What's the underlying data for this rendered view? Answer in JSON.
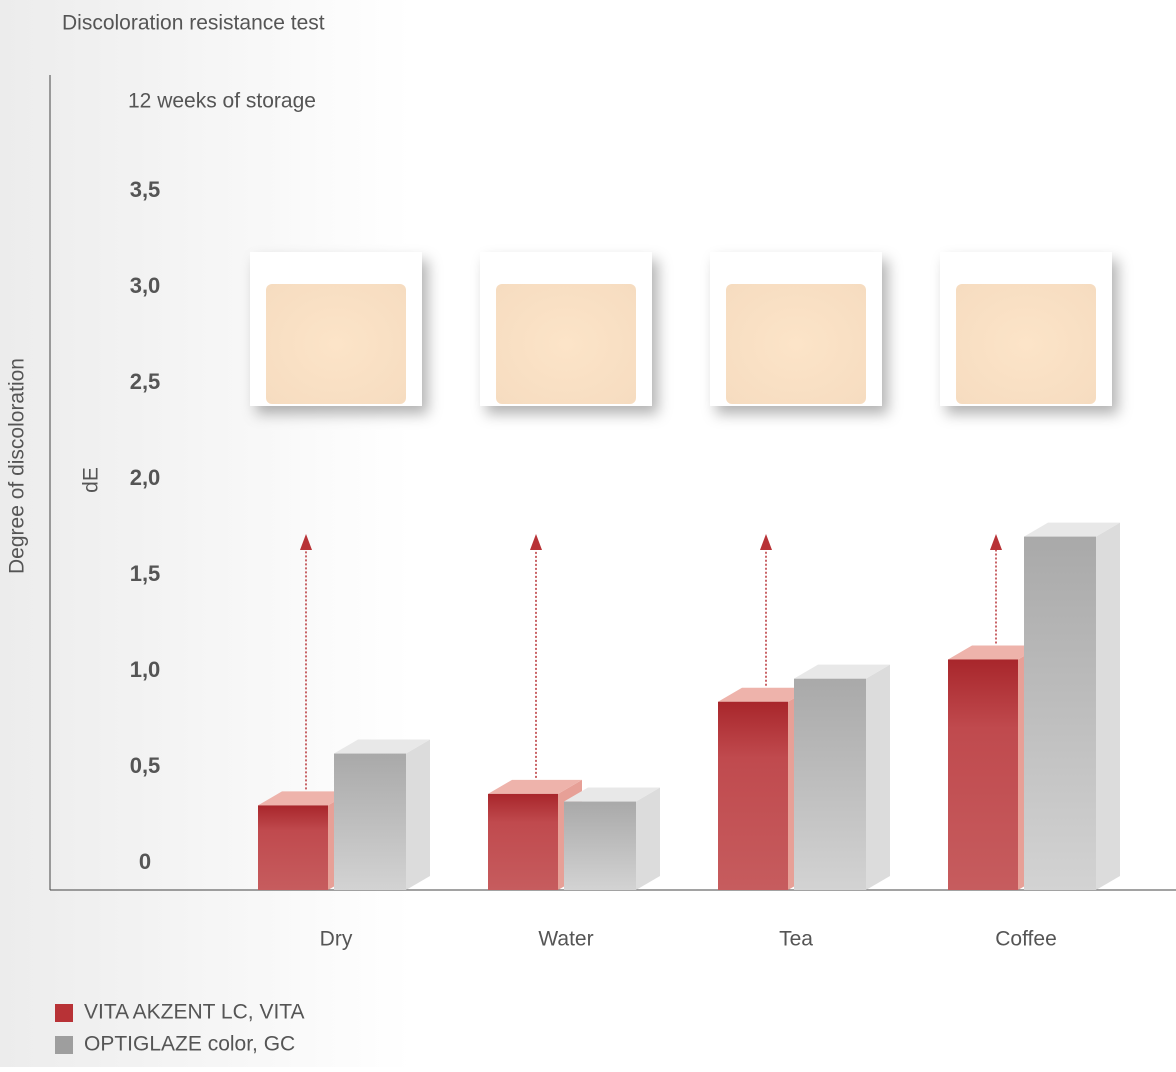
{
  "chart_data": {
    "type": "bar3d",
    "title": "Discoloration resistance test",
    "subtitle": "12 weeks of storage",
    "y_label": "Degree of discoloration",
    "y_unit": "dE",
    "categories": [
      "Dry",
      "Water",
      "Tea",
      "Coffee"
    ],
    "series": [
      {
        "name": "VITA AKZENT LC, VITA",
        "color": "#b83236",
        "values": [
          0.3,
          0.36,
          0.84,
          1.06
        ]
      },
      {
        "name": "OPTIGLAZE color, GC",
        "color": "#9e9e9e",
        "values": [
          0.57,
          0.32,
          0.96,
          1.7
        ]
      }
    ],
    "ylim": [
      0,
      3.5
    ],
    "yticks": [
      0,
      {
        "value": 0.5,
        "label": "0,5"
      },
      {
        "value": 1,
        "label": "1,0"
      },
      {
        "value": 1.5,
        "label": "1,5"
      },
      {
        "value": 2,
        "label": "2,0"
      },
      {
        "value": 2.5,
        "label": "2,5"
      },
      {
        "value": 3,
        "label": "3,0"
      },
      {
        "value": 3.5,
        "label": "3,5"
      }
    ],
    "grid": false
  }
}
